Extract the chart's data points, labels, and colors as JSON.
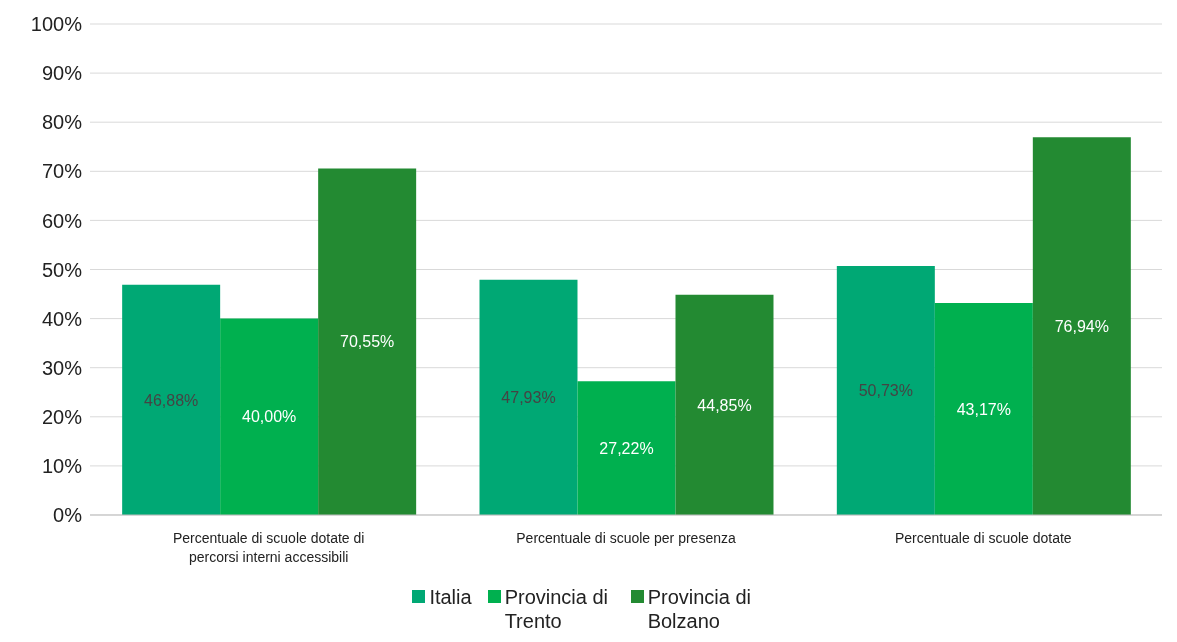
{
  "chart_data": {
    "type": "bar",
    "categories": [
      "Percentuale di scuole dotate di percorsi interni accessibili",
      "Percentuale di scuole per presenza",
      "Percentuale di scuole dotate"
    ],
    "series": [
      {
        "name": "Italia",
        "color": "#00a874",
        "values": [
          46.88,
          47.93,
          50.73
        ],
        "value_labels": [
          "46,88%",
          "47,93%",
          "50,73%"
        ]
      },
      {
        "name": "Provincia di Trento",
        "color": "#00b04f",
        "values": [
          40.0,
          27.22,
          43.17
        ],
        "value_labels": [
          "40,00%",
          "27,22%",
          "43,17%"
        ]
      },
      {
        "name": "Provincia di Bolzano",
        "color": "#238a32",
        "values": [
          70.55,
          44.85,
          76.94
        ],
        "value_labels": [
          "70,55%",
          "44,85%",
          "76,94%"
        ]
      }
    ],
    "ylim": [
      0,
      100
    ],
    "yticks": [
      {
        "value": 0,
        "label": "0%"
      },
      {
        "value": 10,
        "label": "10%"
      },
      {
        "value": 20,
        "label": "20%"
      },
      {
        "value": 30,
        "label": "30%"
      },
      {
        "value": 40,
        "label": "40%"
      },
      {
        "value": 50,
        "label": "50%"
      },
      {
        "value": 60,
        "label": "60%"
      },
      {
        "value": 70,
        "label": "70%"
      },
      {
        "value": 80,
        "label": "80%"
      },
      {
        "value": 90,
        "label": "90%"
      },
      {
        "value": 100,
        "label": "100%"
      }
    ],
    "grid": "y",
    "legend": "bottom"
  }
}
